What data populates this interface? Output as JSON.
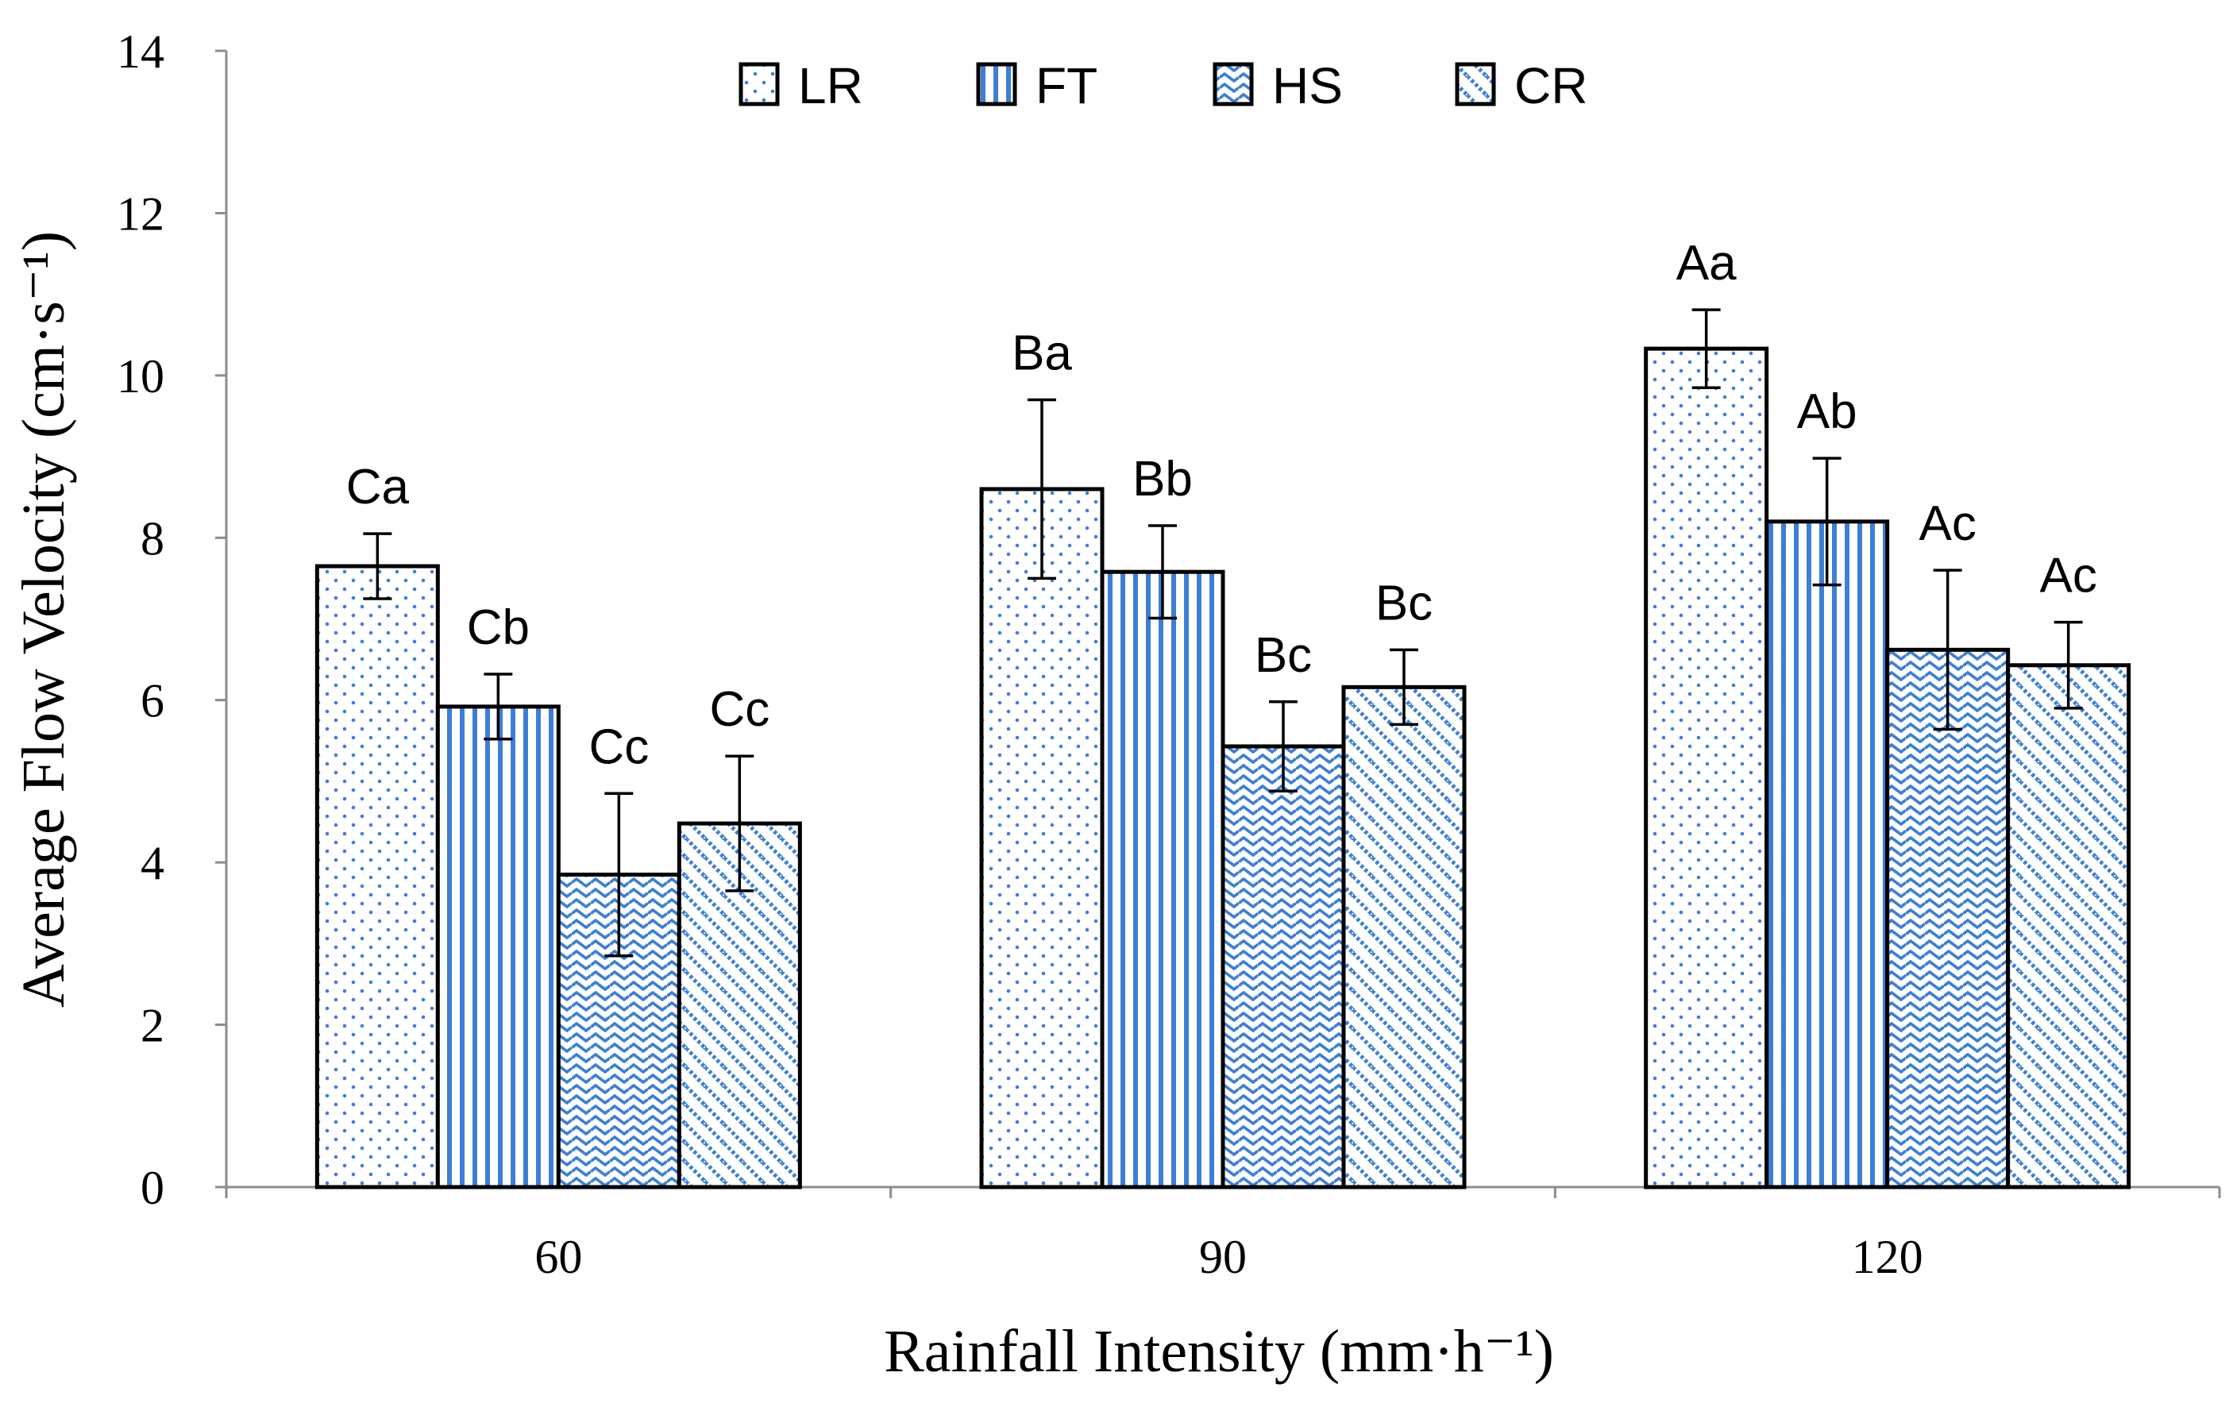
{
  "chart_data": {
    "type": "bar",
    "title": "",
    "xlabel": "Rainfall Intensity (mm·h⁻¹)",
    "ylabel": "Average Flow Velocity (cm·s⁻¹)",
    "ylim": [
      0,
      14
    ],
    "yticks": [
      0,
      2,
      4,
      6,
      8,
      10,
      12,
      14
    ],
    "categories": [
      "60",
      "90",
      "120"
    ],
    "legend_position": "top",
    "series": [
      {
        "name": "LR",
        "pattern": "dots",
        "values": [
          7.65,
          8.6,
          10.33
        ],
        "errors": [
          0.4,
          1.1,
          0.48
        ],
        "labels": [
          "Ca",
          "Ba",
          "Aa"
        ]
      },
      {
        "name": "FT",
        "pattern": "vertical-lines",
        "values": [
          5.92,
          7.58,
          8.2
        ],
        "errors": [
          0.4,
          0.57,
          0.78
        ],
        "labels": [
          "Cb",
          "Bb",
          "Ab"
        ]
      },
      {
        "name": "HS",
        "pattern": "waves",
        "values": [
          3.85,
          5.43,
          6.62
        ],
        "errors": [
          1.0,
          0.55,
          0.98
        ],
        "labels": [
          "Cc",
          "Bc",
          "Ac"
        ]
      },
      {
        "name": "CR",
        "pattern": "diagonal-checks",
        "values": [
          4.48,
          6.16,
          6.43
        ],
        "errors": [
          0.83,
          0.46,
          0.53
        ],
        "labels": [
          "Cc",
          "Bc",
          "Ac"
        ]
      }
    ],
    "colors": {
      "pattern": "#3d7fd6",
      "outline": "#000000",
      "axis": "#8c8c8c"
    }
  }
}
